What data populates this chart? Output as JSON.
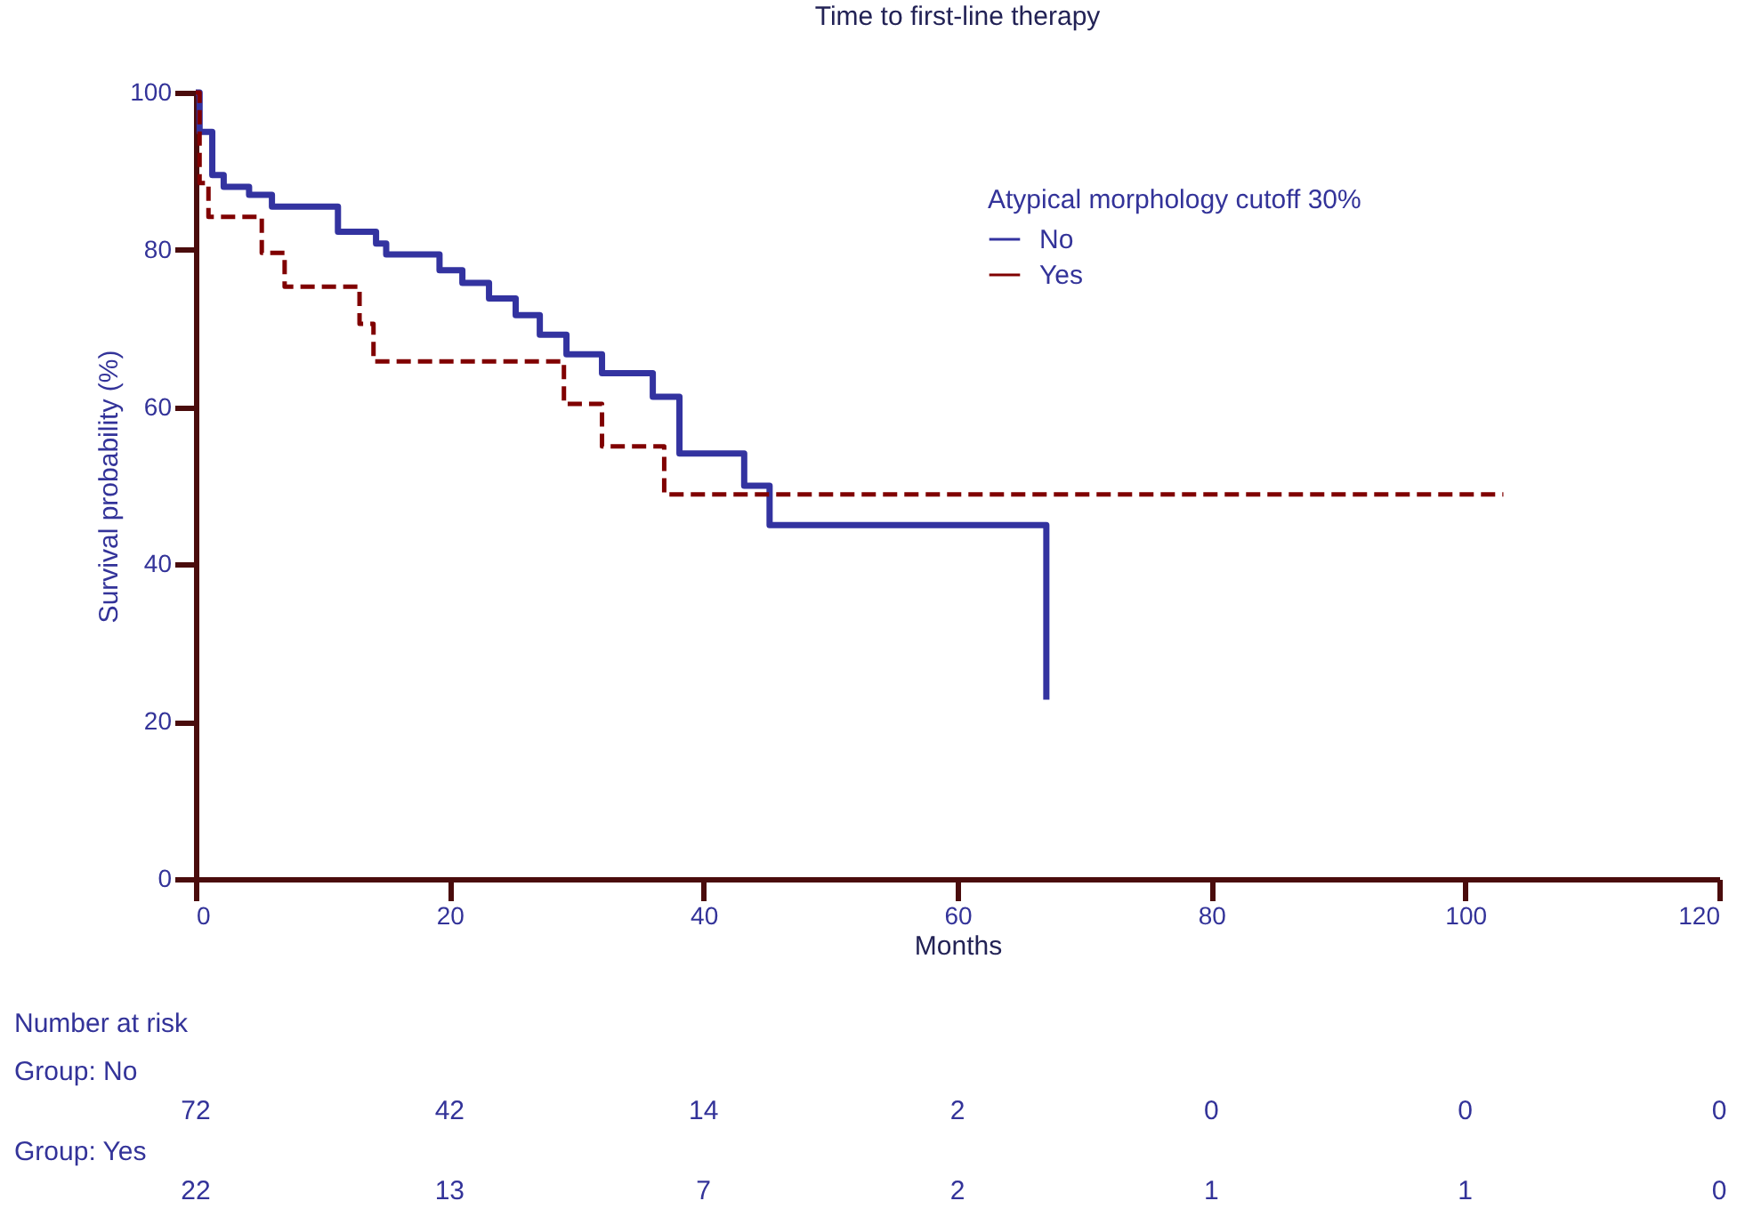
{
  "chart_data": {
    "type": "step",
    "title": "Time to first-line therapy",
    "xlabel": "Months",
    "ylabel": "Survival probability (%)",
    "legend_title": "Atypical morphology cutoff 30%",
    "legend": "top right",
    "xlim": [
      0,
      120
    ],
    "xticks": [
      0,
      20,
      40,
      60,
      80,
      100,
      120
    ],
    "ylim": [
      0,
      100
    ],
    "yticks": [
      0,
      20,
      40,
      60,
      80,
      100
    ],
    "grid": false,
    "series": [
      {
        "name": "No",
        "color": "#3333a0",
        "line_style": "solid",
        "x": [
          0,
          0.3,
          1.3,
          2.2,
          4.2,
          6.0,
          11.2,
          14.2,
          15,
          19.2,
          21,
          23.1,
          25.2,
          27.1,
          29.2,
          32,
          36,
          38.1,
          43.2,
          45.2,
          67
        ],
        "values": [
          100,
          95,
          89.5,
          88,
          87,
          85.5,
          82.3,
          80.8,
          79.4,
          77.4,
          75.8,
          73.8,
          71.7,
          69.2,
          66.7,
          64.3,
          61.3,
          54.1,
          50,
          45,
          22.8
        ]
      },
      {
        "name": "Yes",
        "color": "#800000",
        "line_style": "dashed",
        "x": [
          0,
          0.3,
          1.0,
          5.2,
          7.0,
          12.9,
          14.0,
          29.0,
          32.0,
          36.9,
          103
        ],
        "values": [
          100,
          88.5,
          84.2,
          79.6,
          75.3,
          70.6,
          65.8,
          60.4,
          55,
          48.9,
          48.9
        ]
      }
    ],
    "annotations": [
      "Number at risk",
      "Group: No",
      "72",
      "42",
      "14",
      "2",
      "0",
      "0",
      "0",
      "Group: Yes",
      "22",
      "13",
      "7",
      "2",
      "1",
      "1",
      "0"
    ]
  }
}
